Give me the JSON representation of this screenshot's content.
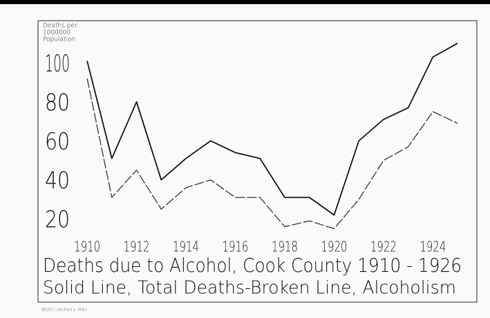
{
  "chart_data": {
    "type": "line",
    "title": "Deaths due to Alcohol, Cook County 1910 - 1926",
    "subtitle": "Solid Line, Total Deaths-Broken Line, Alcoholism",
    "ylabel": [
      "Deaths per",
      "1000000",
      "Population"
    ],
    "footnote": "99101°—26   (Face p. 658.)",
    "x": [
      1910,
      1911,
      1912,
      1913,
      1914,
      1915,
      1916,
      1917,
      1918,
      1919,
      1920,
      1921,
      1922,
      1923,
      1924,
      1925
    ],
    "series": [
      {
        "color": "#111111",
        "dashed": false,
        "values": [
          102,
          52,
          81,
          41,
          52,
          61,
          55,
          52,
          32,
          32,
          23,
          61,
          72,
          78,
          104,
          111
        ]
      },
      {
        "color": "#333333",
        "dashed": true,
        "values": [
          93,
          32,
          46,
          26,
          37,
          41,
          32,
          32,
          17,
          20,
          16,
          31,
          51,
          58,
          76,
          70
        ]
      }
    ],
    "xlim": [
      1909.27,
      1925.5
    ],
    "xticks": [
      1910,
      1912,
      1914,
      1916,
      1918,
      1920,
      1922,
      1924
    ],
    "ylim": [
      13,
      112
    ],
    "yticks": [
      20,
      40,
      60,
      80,
      100
    ],
    "grid": false
  }
}
